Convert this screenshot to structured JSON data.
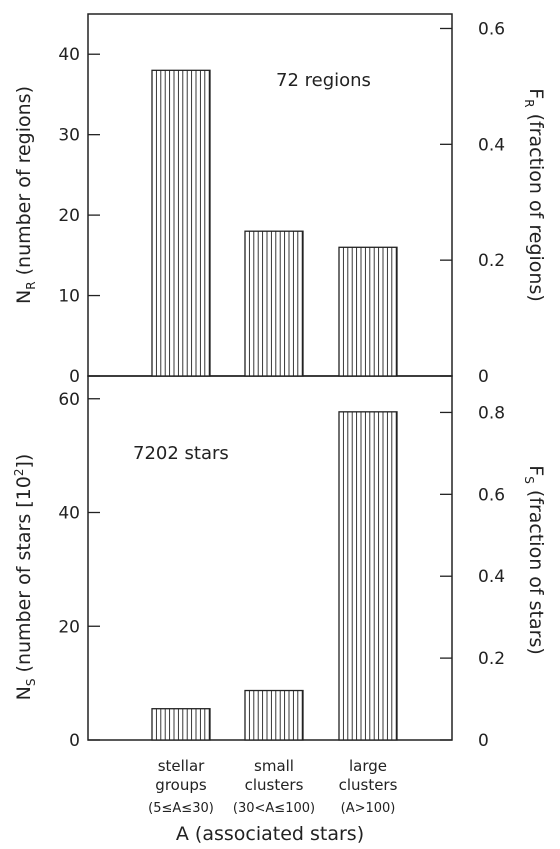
{
  "colors": {
    "ink": "#222222",
    "background": "#ffffff"
  },
  "chart_data": [
    {
      "type": "bar",
      "panel": "top",
      "categories": [
        "stellar groups",
        "small clusters",
        "large clusters"
      ],
      "values": [
        38,
        18,
        16
      ],
      "annotation": "72 regions",
      "ylabel_left_main": "N",
      "ylabel_left_sub": "R",
      "ylabel_left_rest": " (number of regions)",
      "ylabel_right_main": "F",
      "ylabel_right_sub": "R",
      "ylabel_right_rest": " (fraction of regions)",
      "ylim_left": [
        0,
        45
      ],
      "ylim_right": [
        0,
        0.625
      ],
      "left_ticks": [
        "0",
        "10",
        "20",
        "30",
        "40"
      ],
      "right_ticks": [
        "0",
        "0.2",
        "0.4",
        "0.6"
      ],
      "bar_fill": "vertical hatching",
      "grid": false
    },
    {
      "type": "bar",
      "panel": "bottom",
      "categories": [
        "stellar groups",
        "small clusters",
        "large clusters"
      ],
      "values": [
        5.5,
        8.7,
        57.7
      ],
      "annotation": "7202 stars",
      "ylabel_left_main": "N",
      "ylabel_left_sub": "S",
      "ylabel_left_rest": " (number of stars [10",
      "ylabel_left_sup": "2",
      "ylabel_left_end": "])",
      "ylabel_right_main": "F",
      "ylabel_right_sub": "S",
      "ylabel_right_rest": " (fraction of stars)",
      "ylim_left": [
        0,
        64
      ],
      "ylim_right": [
        0,
        0.889
      ],
      "left_ticks": [
        "0",
        "20",
        "40",
        "60"
      ],
      "right_ticks": [
        "0",
        "0.2",
        "0.4",
        "0.6",
        "0.8"
      ],
      "bar_fill": "vertical hatching",
      "grid": false
    }
  ],
  "x_axis": {
    "label": "A (associated stars)",
    "categories": [
      {
        "line1": "stellar",
        "line2": "groups",
        "range": "(5≤A≤30)"
      },
      {
        "line1": "small",
        "line2": "clusters",
        "range": "(30<A≤100)"
      },
      {
        "line1": "large",
        "line2": "clusters",
        "range": "(A>100)"
      }
    ]
  }
}
